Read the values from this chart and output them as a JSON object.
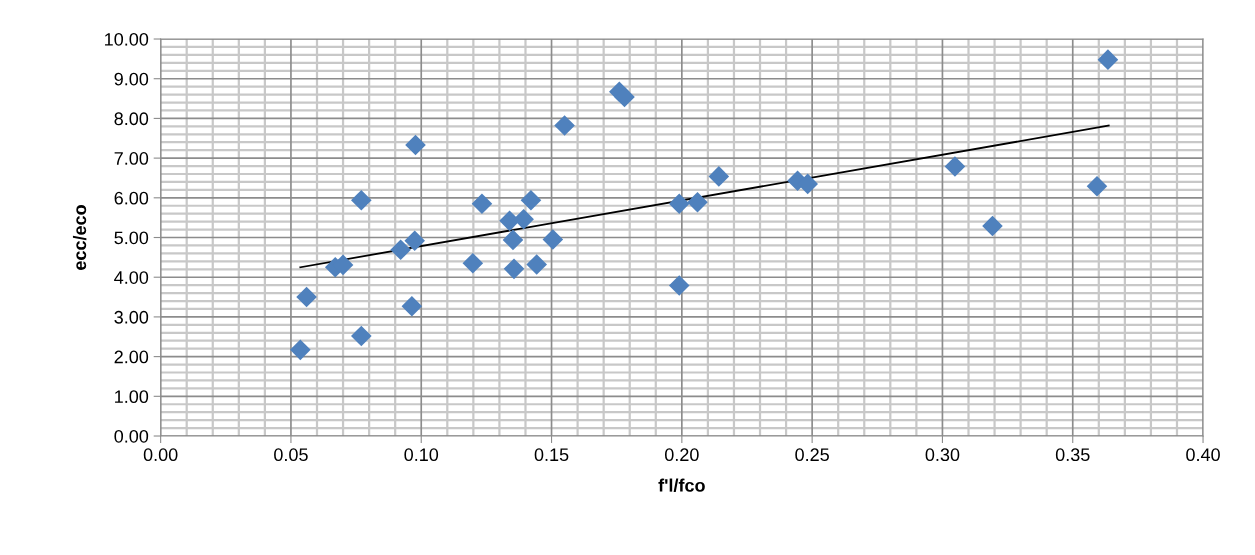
{
  "chart_data": {
    "type": "scatter",
    "xlabel": "f'l/fco",
    "ylabel": "ecc/eco",
    "xlim": [
      0,
      0.4
    ],
    "xticks": [
      {
        "value": 0,
        "label": "0.00"
      },
      {
        "value": 0.05,
        "label": "0.05"
      },
      {
        "value": 0.1,
        "label": "0.10"
      },
      {
        "value": 0.15,
        "label": "0.15"
      },
      {
        "value": 0.2,
        "label": "0.20"
      },
      {
        "value": 0.25,
        "label": "0.25"
      },
      {
        "value": 0.3,
        "label": "0.30"
      },
      {
        "value": 0.35,
        "label": "0.35"
      },
      {
        "value": 0.4,
        "label": "0.40"
      }
    ],
    "ylim": [
      0,
      10
    ],
    "yticks": [
      {
        "value": 0,
        "label": "0.00"
      },
      {
        "value": 1,
        "label": "1.00"
      },
      {
        "value": 2,
        "label": "2.00"
      },
      {
        "value": 3,
        "label": "3.00"
      },
      {
        "value": 4,
        "label": "4.00"
      },
      {
        "value": 5,
        "label": "5.00"
      },
      {
        "value": 6,
        "label": "6.00"
      },
      {
        "value": 7,
        "label": "7.00"
      },
      {
        "value": 8,
        "label": "8.00"
      },
      {
        "value": 9,
        "label": "9.00"
      },
      {
        "value": 10,
        "label": "10.00"
      }
    ],
    "grid": true,
    "legend": false,
    "series": [
      {
        "color": "#4f81bd",
        "marker": "diamond",
        "x": [
          0.0536,
          0.056,
          0.067,
          0.07,
          0.077,
          0.077,
          0.0921,
          0.0975,
          0.0978,
          0.0964,
          0.1198,
          0.1233,
          0.1339,
          0.1393,
          0.1352,
          0.1356,
          0.1421,
          0.1443,
          0.1505,
          0.155,
          0.176,
          0.178,
          0.199,
          0.199,
          0.206,
          0.2142,
          0.2444,
          0.2483,
          0.3048,
          0.3192,
          0.3593,
          0.3635
        ],
        "values": [
          2.17,
          3.5,
          4.25,
          4.31,
          5.94,
          2.52,
          4.69,
          4.92,
          7.33,
          3.27,
          4.35,
          5.85,
          5.42,
          5.46,
          4.94,
          4.21,
          5.94,
          4.32,
          4.95,
          7.82,
          8.67,
          8.54,
          3.79,
          5.85,
          5.89,
          6.54,
          6.43,
          6.35,
          6.79,
          5.29,
          6.29,
          9.48
        ]
      },
      {
        "type": "line",
        "color": "#000000",
        "marker": "none",
        "line_style": "solid",
        "x": [
          0.0536,
          0.3638
        ],
        "values": [
          4.25,
          7.82
        ]
      }
    ]
  }
}
